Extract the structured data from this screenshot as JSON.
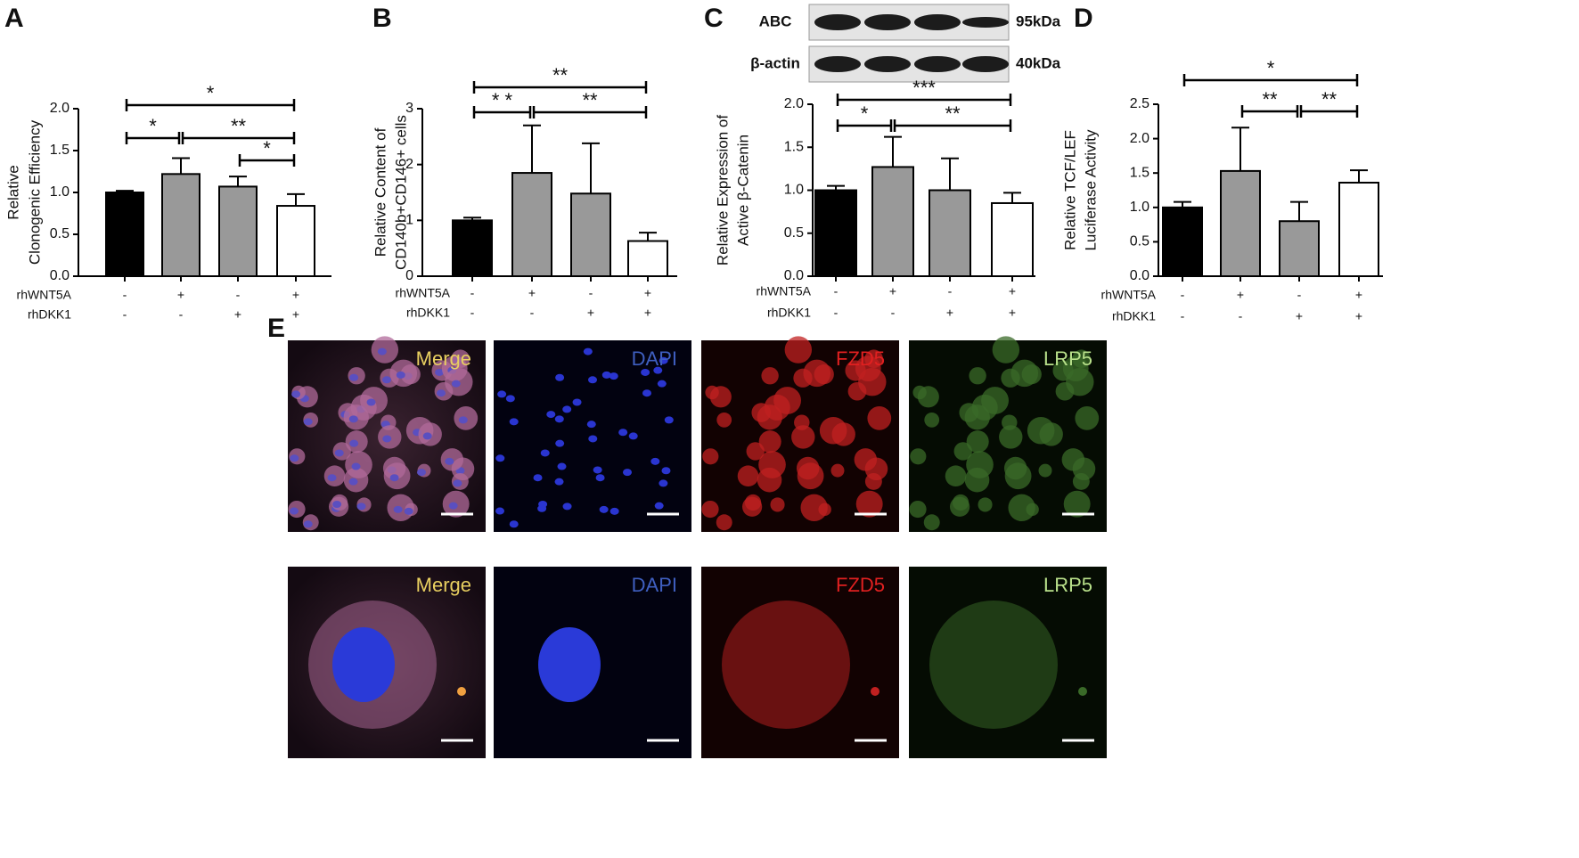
{
  "chart_data": [
    {
      "type": "bar",
      "panel": "A",
      "ylabel": [
        "Relative",
        "Clonogenic Efficiency"
      ],
      "categories": [
        null,
        null,
        null,
        null
      ],
      "values": [
        1.0,
        1.22,
        1.07,
        0.84
      ],
      "errors": [
        0.02,
        0.19,
        0.12,
        0.14
      ],
      "colors": [
        "#000000",
        "#999999",
        "#999999",
        "#ffffff"
      ],
      "ylim": [
        0,
        2.0
      ],
      "yticks": [
        {
          "value": 0,
          "label": "0.0"
        },
        {
          "value": 0.5,
          "label": "0.5"
        },
        {
          "value": 1,
          "label": "1.0"
        },
        {
          "value": 1.5,
          "label": "1.5"
        },
        {
          "value": 2,
          "label": "2.0"
        }
      ],
      "conditions": [
        {
          "name": "rhWNT5A",
          "marks": [
            "-",
            "+",
            "-",
            "+"
          ]
        },
        {
          "name": "rhDKK1",
          "marks": [
            "-",
            "-",
            "+",
            "+"
          ]
        }
      ],
      "brackets": [
        {
          "from": 0,
          "to": 3,
          "label": "*"
        },
        {
          "from": 0,
          "to": 1,
          "label": "*"
        },
        {
          "from": 1,
          "to": 3,
          "label": "**"
        },
        {
          "from": 2,
          "to": 3,
          "label": "*"
        }
      ]
    },
    {
      "type": "bar",
      "panel": "B",
      "ylabel": [
        "Relative Content of",
        "CD140b+CD146+ cells"
      ],
      "categories": [
        null,
        null,
        null,
        null
      ],
      "values": [
        1.0,
        1.85,
        1.48,
        0.63
      ],
      "errors": [
        0.05,
        0.85,
        0.9,
        0.15
      ],
      "colors": [
        "#000000",
        "#999999",
        "#999999",
        "#ffffff"
      ],
      "ylim": [
        0,
        3
      ],
      "yticks": [
        0,
        1,
        2,
        3
      ],
      "conditions": [
        {
          "name": "rhWNT5A",
          "marks": [
            "-",
            "+",
            "-",
            "+"
          ]
        },
        {
          "name": "rhDKK1",
          "marks": [
            "-",
            "-",
            "+",
            "+"
          ]
        }
      ],
      "brackets": [
        {
          "from": 0,
          "to": 3,
          "label": "**"
        },
        {
          "from": 0,
          "to": 1,
          "label": "* *"
        },
        {
          "from": 1,
          "to": 3,
          "label": "**"
        }
      ]
    },
    {
      "type": "bar",
      "panel": "C",
      "ylabel": [
        "Relative Expression of",
        "Active β-Catenin"
      ],
      "categories": [
        null,
        null,
        null,
        null
      ],
      "values": [
        1.0,
        1.27,
        1.0,
        0.85
      ],
      "errors": [
        0.05,
        0.35,
        0.37,
        0.12
      ],
      "colors": [
        "#000000",
        "#999999",
        "#999999",
        "#ffffff"
      ],
      "ylim": [
        0,
        2.0
      ],
      "yticks": [
        {
          "value": 0,
          "label": "0.0"
        },
        {
          "value": 0.5,
          "label": "0.5"
        },
        {
          "value": 1,
          "label": "1.0"
        },
        {
          "value": 1.5,
          "label": "1.5"
        },
        {
          "value": 2,
          "label": "2.0"
        }
      ],
      "conditions": [
        {
          "name": "rhWNT5A",
          "marks": [
            "-",
            "+",
            "-",
            "+"
          ]
        },
        {
          "name": "rhDKK1",
          "marks": [
            "-",
            "-",
            "+",
            "+"
          ]
        }
      ],
      "brackets": [
        {
          "from": 0,
          "to": 3,
          "label": "***"
        },
        {
          "from": 0,
          "to": 1,
          "label": "*"
        },
        {
          "from": 1,
          "to": 3,
          "label": "**"
        }
      ]
    },
    {
      "type": "bar",
      "panel": "D",
      "ylabel": [
        "Relative TCF/LEF",
        "Luciferase Activity"
      ],
      "categories": [
        null,
        null,
        null,
        null
      ],
      "values": [
        1.0,
        1.53,
        0.8,
        1.36
      ],
      "errors": [
        0.08,
        0.63,
        0.28,
        0.18
      ],
      "colors": [
        "#000000",
        "#999999",
        "#999999",
        "#ffffff"
      ],
      "ylim": [
        0,
        2.5
      ],
      "yticks": [
        {
          "value": 0,
          "label": "0.0"
        },
        {
          "value": 0.5,
          "label": "0.5"
        },
        {
          "value": 1,
          "label": "1.0"
        },
        {
          "value": 1.5,
          "label": "1.5"
        },
        {
          "value": 2,
          "label": "2.0"
        },
        {
          "value": 2.5,
          "label": "2.5"
        }
      ],
      "conditions": [
        {
          "name": "rhWNT5A",
          "marks": [
            "-",
            "+",
            "-",
            "+"
          ]
        },
        {
          "name": "rhDKK1",
          "marks": [
            "-",
            "-",
            "+",
            "+"
          ]
        }
      ],
      "brackets": [
        {
          "from": 0,
          "to": 3,
          "label": "*"
        },
        {
          "from": 1,
          "to": 2,
          "label": "**"
        },
        {
          "from": 2,
          "to": 3,
          "label": "**"
        }
      ]
    }
  ],
  "blot": {
    "rows": [
      {
        "protein": "ABC",
        "size": "95kDa"
      },
      {
        "protein": "β-actin",
        "size": "40kDa"
      }
    ]
  },
  "panel_e": {
    "letter": "E",
    "rows": [
      [
        "Merge",
        "DAPI",
        "FZD5",
        "LRP5"
      ],
      [
        "Merge",
        "DAPI",
        "FZD5",
        "LRP5"
      ]
    ],
    "channel_colors": [
      "#e8cf60",
      "#3f5fc0",
      "#e02020",
      "#b8e08a"
    ]
  }
}
